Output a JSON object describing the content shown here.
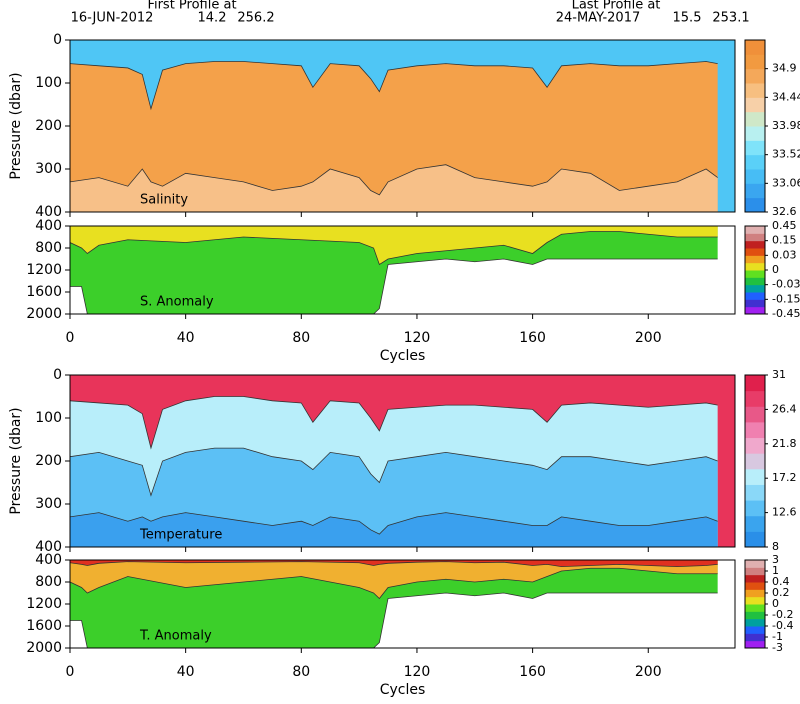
{
  "header": {
    "first_label": "First Profile at",
    "first_date": "16-JUN-2012",
    "first_lat": 14.2,
    "first_lon": 256.2,
    "last_label": "Last Profile at",
    "last_date": "24-MAY-2017",
    "last_lat": 15.5,
    "last_lon": 253.1
  },
  "chart_data": [
    {
      "type": "section",
      "label": "Salinity",
      "ylabel": "Pressure (dbar)",
      "x": [
        0,
        10,
        20,
        25,
        28,
        32,
        40,
        50,
        60,
        70,
        80,
        84,
        90,
        100,
        104,
        107,
        110,
        120,
        130,
        140,
        150,
        160,
        165,
        170,
        180,
        190,
        200,
        210,
        220,
        224
      ],
      "xlim": [
        0,
        230
      ],
      "xticks": [
        0,
        40,
        80,
        120,
        160,
        200
      ],
      "show_xtick_labels": false,
      "ylim": [
        0,
        400
      ],
      "y_inverted": true,
      "yticks": [
        0,
        100,
        200,
        300,
        400
      ],
      "background": "#4fc6f5",
      "series": [
        {
          "color": "#f4a14a",
          "values": [
            55,
            60,
            65,
            80,
            160,
            70,
            55,
            50,
            50,
            55,
            60,
            110,
            55,
            60,
            90,
            120,
            70,
            60,
            55,
            60,
            60,
            65,
            110,
            60,
            55,
            60,
            60,
            55,
            50,
            55
          ]
        },
        {
          "color": "#f7c088",
          "values": [
            330,
            320,
            340,
            300,
            330,
            340,
            310,
            320,
            330,
            350,
            340,
            330,
            300,
            320,
            350,
            360,
            330,
            300,
            290,
            320,
            330,
            340,
            330,
            300,
            310,
            350,
            340,
            330,
            300,
            320
          ]
        }
      ],
      "colorbar": {
        "clim": [
          32.6,
          35.36
        ],
        "ticks": [
          32.6,
          33.06,
          33.52,
          33.98,
          34.44,
          34.9
        ],
        "colors": [
          "#2b8fea",
          "#3aa6f0",
          "#47bdf5",
          "#5ad0f8",
          "#7fe3fa",
          "#b8f0f0",
          "#cfe8c8",
          "#f7d0a8",
          "#f7bf80",
          "#f4a85a",
          "#f29a40",
          "#f0903a"
        ]
      }
    },
    {
      "type": "section",
      "label": "S. Anomaly",
      "xlabel": "Cycles",
      "x": [
        0,
        4,
        6,
        10,
        20,
        40,
        60,
        80,
        100,
        105,
        107,
        110,
        120,
        130,
        140,
        150,
        160,
        165,
        170,
        180,
        190,
        200,
        210,
        220,
        224
      ],
      "xlim": [
        0,
        230
      ],
      "xticks": [
        0,
        40,
        80,
        120,
        160,
        200
      ],
      "show_xtick_labels": true,
      "ylim": [
        400,
        2000
      ],
      "y_inverted": true,
      "yticks": [
        400,
        800,
        1200,
        1600,
        2000
      ],
      "background": "#ffffff",
      "series": [
        {
          "color": "#3ccf2a",
          "fill": "above",
          "values": [
            1500,
            1500,
            2000,
            2000,
            2000,
            2000,
            2000,
            2000,
            2000,
            2000,
            1900,
            1100,
            1050,
            1000,
            1050,
            1000,
            1100,
            1000,
            1000,
            1000,
            1000,
            1000,
            1000,
            1000,
            1000
          ]
        },
        {
          "color": "#e8e020",
          "fill": "above",
          "values": [
            700,
            800,
            900,
            750,
            650,
            700,
            600,
            650,
            700,
            800,
            1100,
            1000,
            900,
            850,
            800,
            750,
            900,
            700,
            550,
            500,
            500,
            550,
            600,
            600,
            600
          ]
        }
      ],
      "colorbar": {
        "ticks": [
          -0.45,
          -0.15,
          -0.03,
          0,
          0.03,
          0.15,
          0.45
        ],
        "colors": [
          "#a020f0",
          "#4030d0",
          "#2060ff",
          "#00a0a0",
          "#20c040",
          "#60e020",
          "#e8e020",
          "#f0a020",
          "#e05010",
          "#c02020",
          "#d08080",
          "#e0b0b0"
        ]
      }
    },
    {
      "type": "section",
      "label": "Temperature",
      "ylabel": "Pressure (dbar)",
      "x": [
        0,
        10,
        20,
        25,
        28,
        32,
        40,
        50,
        60,
        70,
        80,
        84,
        90,
        100,
        104,
        107,
        110,
        120,
        130,
        140,
        150,
        160,
        165,
        170,
        180,
        190,
        200,
        210,
        220,
        224
      ],
      "xlim": [
        0,
        230
      ],
      "xticks": [
        0,
        40,
        80,
        120,
        160,
        200
      ],
      "show_xtick_labels": false,
      "ylim": [
        0,
        400
      ],
      "y_inverted": true,
      "yticks": [
        0,
        100,
        200,
        300,
        400
      ],
      "background": "#e8345a",
      "series": [
        {
          "color": "#b8eefa",
          "values": [
            60,
            65,
            70,
            90,
            170,
            80,
            60,
            50,
            50,
            60,
            65,
            110,
            60,
            65,
            100,
            130,
            80,
            75,
            70,
            70,
            75,
            80,
            110,
            70,
            65,
            70,
            75,
            70,
            65,
            70
          ]
        },
        {
          "color": "#5cc0f5",
          "values": [
            190,
            180,
            200,
            210,
            280,
            200,
            180,
            170,
            170,
            190,
            200,
            220,
            180,
            190,
            230,
            250,
            200,
            190,
            180,
            190,
            200,
            210,
            220,
            190,
            190,
            200,
            210,
            200,
            190,
            200
          ]
        },
        {
          "color": "#3aa0ee",
          "values": [
            330,
            320,
            340,
            330,
            340,
            330,
            320,
            330,
            340,
            350,
            340,
            350,
            330,
            340,
            360,
            370,
            350,
            330,
            320,
            330,
            340,
            350,
            350,
            330,
            340,
            350,
            350,
            340,
            330,
            340
          ]
        }
      ],
      "colorbar": {
        "clim": [
          8,
          31
        ],
        "ticks": [
          8,
          12.6,
          17.2,
          21.8,
          26.4,
          31
        ],
        "colors": [
          "#2a8fe8",
          "#3aa4ee",
          "#5cc0f5",
          "#8ad8f8",
          "#b8eefa",
          "#d8c8e0",
          "#f0a8cc",
          "#f080b0",
          "#e85888",
          "#e83c68",
          "#e0204c"
        ]
      }
    },
    {
      "type": "section",
      "label": "T. Anomaly",
      "xlabel": "Cycles",
      "x": [
        0,
        4,
        6,
        10,
        20,
        40,
        60,
        80,
        100,
        105,
        107,
        110,
        120,
        130,
        140,
        150,
        160,
        165,
        170,
        180,
        190,
        200,
        210,
        220,
        224
      ],
      "xlim": [
        0,
        230
      ],
      "xticks": [
        0,
        40,
        80,
        120,
        160,
        200
      ],
      "show_xtick_labels": true,
      "ylim": [
        400,
        2000
      ],
      "y_inverted": true,
      "yticks": [
        400,
        800,
        1200,
        1600,
        2000
      ],
      "background": "#ffffff",
      "series": [
        {
          "color": "#3ccf2a",
          "fill": "above",
          "values": [
            1500,
            1500,
            2000,
            2000,
            2000,
            2000,
            2000,
            2000,
            2000,
            2000,
            1900,
            1100,
            1050,
            1000,
            1050,
            1000,
            1100,
            1000,
            1000,
            1000,
            1000,
            1000,
            1000,
            1000,
            1000
          ]
        },
        {
          "color": "#f0b030",
          "fill": "above",
          "values": [
            800,
            900,
            1000,
            900,
            700,
            900,
            800,
            700,
            900,
            1000,
            1100,
            900,
            800,
            750,
            800,
            750,
            800,
            700,
            600,
            550,
            550,
            600,
            650,
            650,
            650
          ]
        },
        {
          "color": "#e03020",
          "fill": "above",
          "values": [
            450,
            480,
            500,
            460,
            430,
            450,
            440,
            430,
            450,
            500,
            480,
            460,
            440,
            430,
            450,
            440,
            500,
            480,
            520,
            500,
            480,
            500,
            520,
            500,
            480
          ]
        }
      ],
      "colorbar": {
        "ticks": [
          -3,
          -1,
          -0.4,
          -0.2,
          0,
          0.2,
          0.4,
          1,
          3
        ],
        "colors": [
          "#a020f0",
          "#4030d0",
          "#2060ff",
          "#00a0a0",
          "#20c040",
          "#60e020",
          "#e8e020",
          "#f0a020",
          "#e05010",
          "#c02020",
          "#d08080",
          "#e0b0b0"
        ]
      }
    }
  ]
}
